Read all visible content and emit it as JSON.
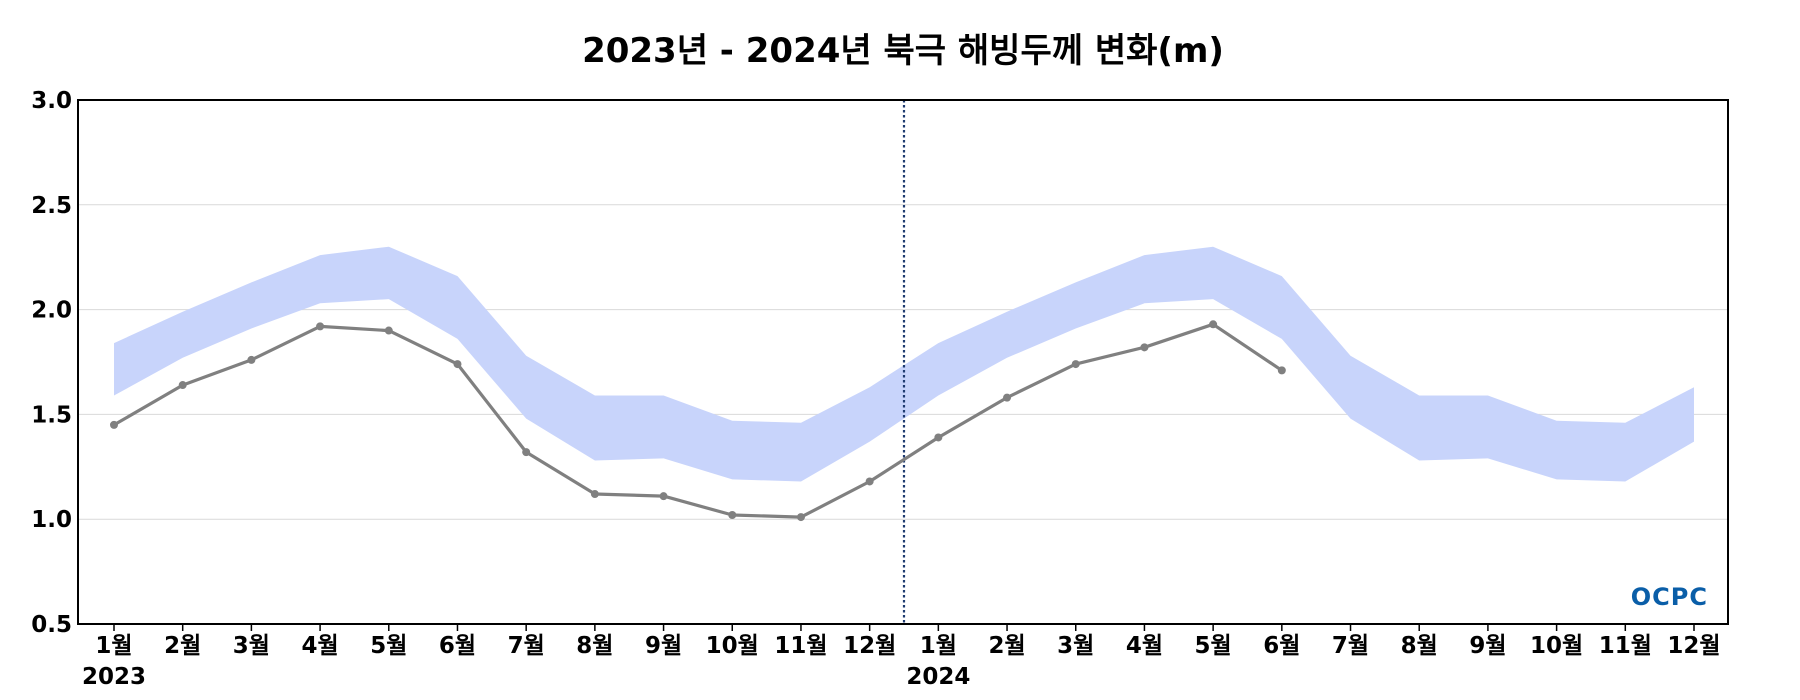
{
  "chart_data": {
    "type": "line",
    "title": "2023년 - 2024년 북극 해빙두께 변화(m)",
    "ylim": [
      0.5,
      3.0
    ],
    "yticks": [
      "0.5",
      "1.0",
      "1.5",
      "2.0",
      "2.5",
      "3.0"
    ],
    "categories": [
      "1월",
      "2월",
      "3월",
      "4월",
      "5월",
      "6월",
      "7월",
      "8월",
      "9월",
      "10월",
      "11월",
      "12월",
      "1월",
      "2월",
      "3월",
      "4월",
      "5월",
      "6월",
      "7월",
      "8월",
      "9월",
      "10월",
      "11월",
      "12월"
    ],
    "years": [
      {
        "label": "2023",
        "start_index": 0
      },
      {
        "label": "2024",
        "start_index": 12
      }
    ],
    "grid": "horizontal",
    "series": [
      {
        "values": [
          1.45,
          1.64,
          1.76,
          1.92,
          1.9,
          1.74,
          1.32,
          1.12,
          1.11,
          1.02,
          1.01,
          1.18,
          1.39,
          1.58,
          1.74,
          1.82,
          1.93,
          1.71,
          null,
          null,
          null,
          null,
          null,
          null
        ],
        "color": "#808080"
      }
    ],
    "band": {
      "upper": [
        1.84,
        1.99,
        2.13,
        2.26,
        2.3,
        2.16,
        1.78,
        1.59,
        1.59,
        1.47,
        1.46,
        1.63,
        1.84,
        1.99,
        2.13,
        2.26,
        2.3,
        2.16,
        1.78,
        1.59,
        1.59,
        1.47,
        1.46,
        1.63
      ],
      "lower": [
        1.59,
        1.77,
        1.91,
        2.03,
        2.05,
        1.86,
        1.48,
        1.28,
        1.29,
        1.19,
        1.18,
        1.37,
        1.59,
        1.77,
        1.91,
        2.03,
        2.05,
        1.86,
        1.48,
        1.28,
        1.29,
        1.19,
        1.18,
        1.37
      ],
      "color": "#c8d4fb"
    },
    "divider": {
      "between_index": [
        11,
        12
      ],
      "color": "#1f3b70"
    },
    "watermark": "OCPC"
  }
}
